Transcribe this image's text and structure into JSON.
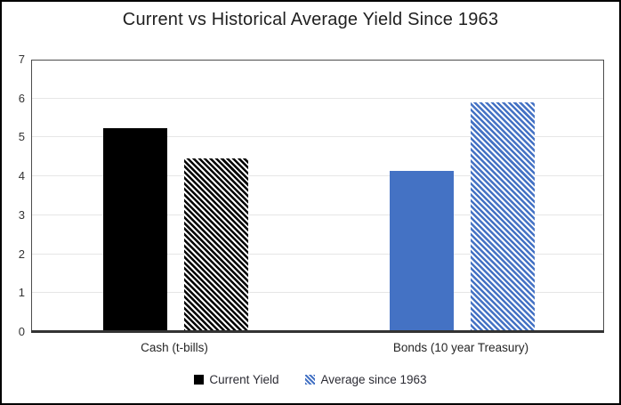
{
  "chart_data": {
    "type": "bar",
    "title": "Current vs Historical Average Yield Since 1963",
    "categories": [
      "Cash (t-bills)",
      "Bonds (10 year Treasury)"
    ],
    "category_colors": [
      "#000000",
      "#4472C4"
    ],
    "series": [
      {
        "name": "Current Yield",
        "pattern": "solid",
        "legend_color": "#000000",
        "values": [
          5.25,
          4.15
        ]
      },
      {
        "name": "Average since 1963",
        "pattern": "diagonal-hatch",
        "legend_color": "#4472C4",
        "values": [
          4.45,
          5.9
        ]
      }
    ],
    "ylim": [
      0,
      7
    ],
    "yticks": [
      0,
      1,
      2,
      3,
      4,
      5,
      6,
      7
    ],
    "xlabel": "",
    "ylabel": "",
    "grid": true,
    "legend_position": "bottom",
    "plot_border_color": "#4c4c4c",
    "axis_line_color": "#333333",
    "gridline_color": "#e6e6e6",
    "background_color": "#ffffff",
    "frame_border_color": "#000000"
  }
}
